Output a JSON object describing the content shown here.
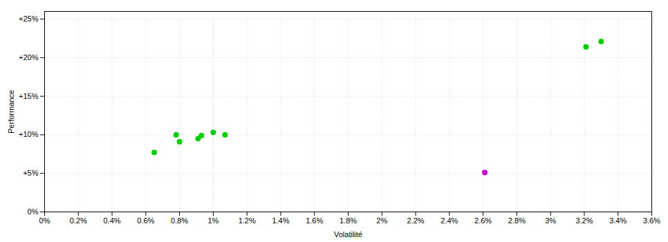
{
  "chart_data": {
    "type": "scatter",
    "xlabel": "Volatilité",
    "ylabel": "Performance",
    "xlim": [
      0.0,
      0.036
    ],
    "ylim": [
      0.0,
      0.26
    ],
    "xticks": [
      {
        "value": 0.0,
        "label": "0%"
      },
      {
        "value": 0.002,
        "label": "0.2%"
      },
      {
        "value": 0.004,
        "label": "0.4%"
      },
      {
        "value": 0.006,
        "label": "0.6%"
      },
      {
        "value": 0.008,
        "label": "0.8%"
      },
      {
        "value": 0.01,
        "label": "1%"
      },
      {
        "value": 0.012,
        "label": "1.2%"
      },
      {
        "value": 0.014,
        "label": "1.4%"
      },
      {
        "value": 0.016,
        "label": "1.6%"
      },
      {
        "value": 0.018,
        "label": "1.8%"
      },
      {
        "value": 0.02,
        "label": "2%"
      },
      {
        "value": 0.022,
        "label": "2.2%"
      },
      {
        "value": 0.024,
        "label": "2.4%"
      },
      {
        "value": 0.026,
        "label": "2.6%"
      },
      {
        "value": 0.028,
        "label": "2.8%"
      },
      {
        "value": 0.03,
        "label": "3%"
      },
      {
        "value": 0.032,
        "label": "3.2%"
      },
      {
        "value": 0.034,
        "label": "3.4%"
      },
      {
        "value": 0.036,
        "label": "3.6%"
      }
    ],
    "yticks": [
      {
        "value": 0.0,
        "label": "0%"
      },
      {
        "value": 0.05,
        "label": "+5%"
      },
      {
        "value": 0.1,
        "label": "+10%"
      },
      {
        "value": 0.15,
        "label": "+15%"
      },
      {
        "value": 0.2,
        "label": "+20%"
      },
      {
        "value": 0.25,
        "label": "+25%"
      }
    ],
    "grid": true,
    "series": [
      {
        "color": "#00cc00",
        "x": [
          0.0065,
          0.0078,
          0.008,
          0.0091,
          0.0093,
          0.01,
          0.0107,
          0.0321,
          0.033
        ],
        "values": [
          0.077,
          0.1,
          0.091,
          0.095,
          0.099,
          0.103,
          0.1,
          0.214,
          0.221
        ]
      },
      {
        "color": "#cc00cc",
        "x": [
          0.0261
        ],
        "values": [
          0.051
        ]
      }
    ]
  }
}
